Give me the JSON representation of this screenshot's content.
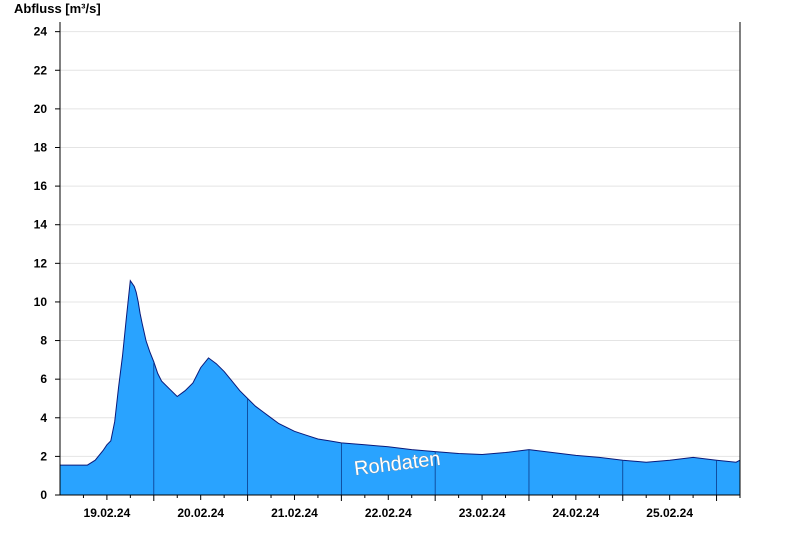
{
  "chart_data": {
    "type": "area",
    "title": "",
    "ylabel": "Abfluss [m³/s]",
    "xlabel": "",
    "ylim": [
      0,
      24.5
    ],
    "yticks": [
      0,
      2,
      4,
      6,
      8,
      10,
      12,
      14,
      16,
      18,
      20,
      22,
      24
    ],
    "xlim": [
      "2024-02-18T12:00",
      "2024-02-25T18:00"
    ],
    "xtick_labels": [
      "19.02.24",
      "20.02.24",
      "21.02.24",
      "22.02.24",
      "23.02.24",
      "24.02.24",
      "25.02.24"
    ],
    "grid": "horizontal",
    "watermark": "Rohdaten",
    "colors": {
      "fill": "#29a3ff",
      "line": "#0a1a7a"
    },
    "series": [
      {
        "x": [
          "2024-02-18T12:00",
          "2024-02-18T19:00",
          "2024-02-18T21:00",
          "2024-02-18T23:00",
          "2024-02-19T00:00",
          "2024-02-19T01:00",
          "2024-02-19T02:00",
          "2024-02-19T03:00",
          "2024-02-19T04:00",
          "2024-02-19T05:00",
          "2024-02-19T06:00",
          "2024-02-19T07:00",
          "2024-02-19T07:30",
          "2024-02-19T08:00",
          "2024-02-19T08:30",
          "2024-02-19T09:00",
          "2024-02-19T10:00",
          "2024-02-19T11:00",
          "2024-02-19T12:00",
          "2024-02-19T13:00",
          "2024-02-19T14:00",
          "2024-02-19T16:00",
          "2024-02-19T18:00",
          "2024-02-19T20:00",
          "2024-02-19T22:00",
          "2024-02-20T00:00",
          "2024-02-20T02:00",
          "2024-02-20T04:00",
          "2024-02-20T06:00",
          "2024-02-20T08:00",
          "2024-02-20T10:00",
          "2024-02-20T12:00",
          "2024-02-20T14:00",
          "2024-02-20T16:00",
          "2024-02-20T18:00",
          "2024-02-20T20:00",
          "2024-02-20T22:00",
          "2024-02-21T00:00",
          "2024-02-21T03:00",
          "2024-02-21T06:00",
          "2024-02-21T09:00",
          "2024-02-21T12:00",
          "2024-02-21T18:00",
          "2024-02-22T00:00",
          "2024-02-22T06:00",
          "2024-02-22T12:00",
          "2024-02-22T18:00",
          "2024-02-23T00:00",
          "2024-02-23T06:00",
          "2024-02-23T12:00",
          "2024-02-23T18:00",
          "2024-02-24T00:00",
          "2024-02-24T06:00",
          "2024-02-24T12:00",
          "2024-02-24T18:00",
          "2024-02-25T00:00",
          "2024-02-25T06:00",
          "2024-02-25T12:00",
          "2024-02-25T17:00",
          "2024-02-25T18:00"
        ],
        "values": [
          1.55,
          1.55,
          1.8,
          2.3,
          2.6,
          2.8,
          3.8,
          5.6,
          7.2,
          9.2,
          11.1,
          10.8,
          10.5,
          10.0,
          9.4,
          8.9,
          8.0,
          7.4,
          6.9,
          6.3,
          5.9,
          5.5,
          5.1,
          5.4,
          5.8,
          6.6,
          7.1,
          6.8,
          6.4,
          5.9,
          5.4,
          5.0,
          4.6,
          4.3,
          4.0,
          3.7,
          3.5,
          3.3,
          3.1,
          2.9,
          2.8,
          2.7,
          2.6,
          2.5,
          2.35,
          2.25,
          2.15,
          2.1,
          2.2,
          2.35,
          2.2,
          2.05,
          1.95,
          1.8,
          1.7,
          1.8,
          1.95,
          1.8,
          1.7,
          1.8
        ]
      }
    ]
  }
}
